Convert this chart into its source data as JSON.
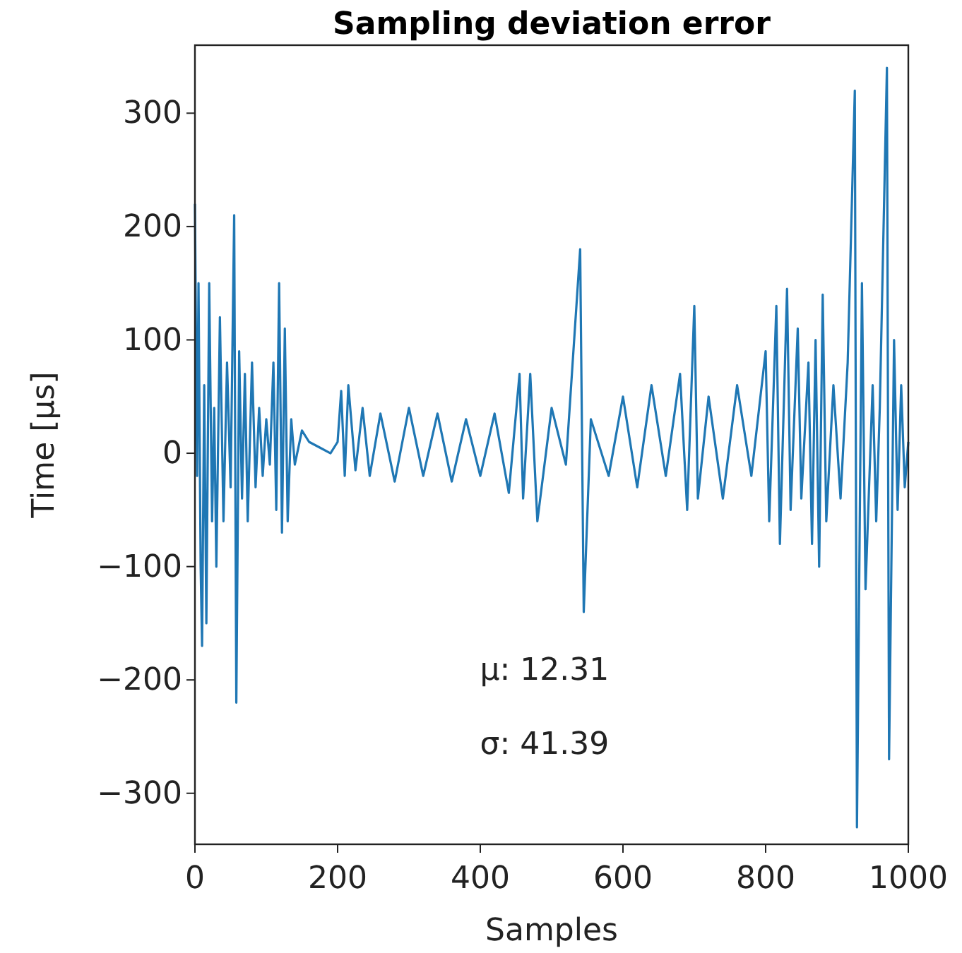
{
  "chart_data": {
    "type": "line",
    "title": "Sampling deviation error",
    "xlabel": "Samples",
    "ylabel": "Time [µs]",
    "xlim": [
      0,
      1000
    ],
    "ylim": [
      -345,
      360
    ],
    "xticks": [
      0,
      200,
      400,
      600,
      800,
      1000
    ],
    "yticks": [
      {
        "value": -300,
        "label": "−300"
      },
      {
        "value": -200,
        "label": "−200"
      },
      {
        "value": -100,
        "label": "−100"
      },
      0,
      100,
      200,
      300
    ],
    "grid": false,
    "marker": "none",
    "line_style": "solid",
    "annotations": [
      "μ: 12.31",
      "σ: 41.39"
    ],
    "series": [
      {
        "color": "#1f77b4",
        "x": [
          0,
          3,
          5,
          8,
          10,
          13,
          16,
          20,
          24,
          27,
          30,
          35,
          40,
          45,
          50,
          55,
          58,
          62,
          66,
          70,
          74,
          80,
          85,
          90,
          95,
          100,
          105,
          110,
          114,
          118,
          122,
          126,
          130,
          135,
          140,
          150,
          160,
          175,
          190,
          200,
          205,
          210,
          215,
          225,
          235,
          245,
          260,
          280,
          300,
          320,
          340,
          360,
          380,
          400,
          420,
          440,
          455,
          460,
          470,
          480,
          500,
          520,
          540,
          545,
          555,
          580,
          600,
          620,
          640,
          660,
          680,
          690,
          700,
          705,
          720,
          740,
          760,
          780,
          800,
          805,
          815,
          820,
          830,
          835,
          845,
          850,
          860,
          865,
          870,
          875,
          880,
          885,
          895,
          905,
          915,
          925,
          928,
          935,
          940,
          950,
          955,
          960,
          970,
          973,
          980,
          985,
          990,
          995,
          1000
        ],
        "values": [
          220,
          -20,
          150,
          -100,
          -170,
          60,
          -150,
          150,
          -60,
          40,
          -100,
          120,
          -60,
          80,
          -30,
          210,
          -220,
          90,
          -40,
          70,
          -60,
          80,
          -30,
          40,
          -20,
          30,
          -10,
          80,
          -50,
          150,
          -70,
          110,
          -60,
          30,
          -10,
          20,
          10,
          5,
          0,
          10,
          55,
          -20,
          60,
          -15,
          40,
          -20,
          35,
          -25,
          40,
          -20,
          35,
          -25,
          30,
          -20,
          35,
          -35,
          70,
          -40,
          70,
          -60,
          40,
          -10,
          180,
          -140,
          30,
          -20,
          50,
          -30,
          60,
          -20,
          70,
          -50,
          130,
          -40,
          50,
          -40,
          60,
          -20,
          90,
          -60,
          130,
          -80,
          145,
          -50,
          110,
          -40,
          80,
          -80,
          100,
          -100,
          140,
          -60,
          60,
          -40,
          80,
          320,
          -330,
          150,
          -120,
          60,
          -60,
          40,
          340,
          -270,
          100,
          -50,
          60,
          -30,
          10
        ]
      }
    ]
  }
}
